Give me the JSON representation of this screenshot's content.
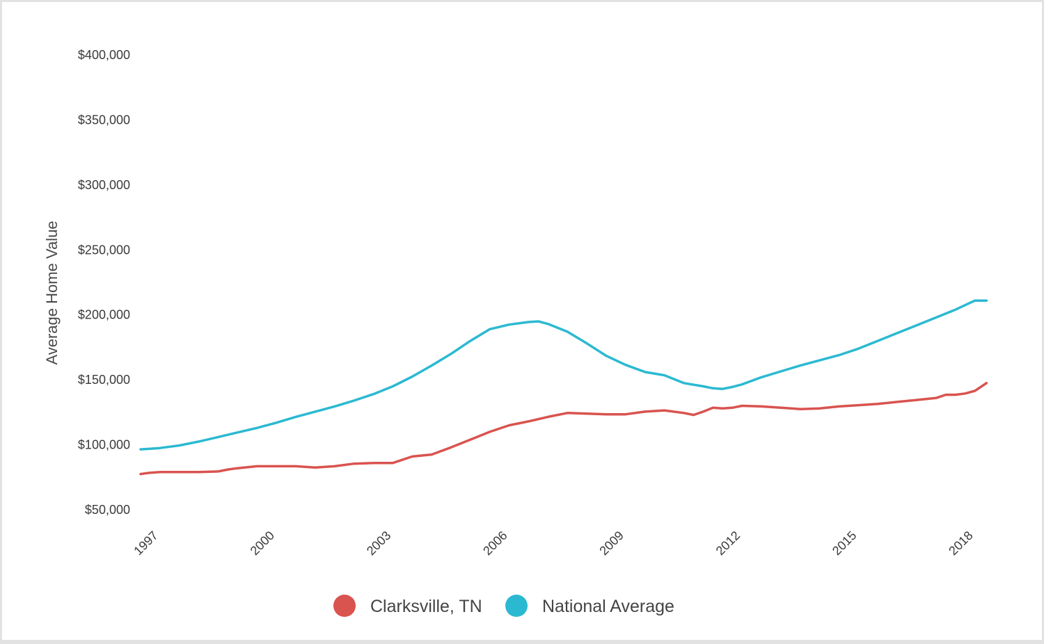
{
  "chart_data": {
    "type": "line",
    "title": "",
    "xlabel": "",
    "ylabel": "Average Home Value",
    "x_ticks": [
      "1997",
      "2000",
      "2003",
      "2006",
      "2009",
      "2012",
      "2015",
      "2018"
    ],
    "y_ticks": [
      "$50,000",
      "$100,000",
      "$150,000",
      "$200,000",
      "$250,000",
      "$300,000",
      "$350,000",
      "$400,000"
    ],
    "xlim": [
      1997,
      2018.9
    ],
    "ylim": [
      50000,
      400000
    ],
    "grid": false,
    "legend_position": "bottom",
    "series": [
      {
        "name": "Clarksville, TN",
        "color": "#d9534f",
        "x": [
          1997.0,
          1997.25,
          1997.5,
          1998.0,
          1998.5,
          1999.0,
          1999.25,
          1999.5,
          2000.0,
          2000.5,
          2001.0,
          2001.5,
          2002.0,
          2002.5,
          2003.0,
          2003.5,
          2004.0,
          2004.5,
          2005.0,
          2005.5,
          2006.0,
          2006.5,
          2007.0,
          2007.5,
          2008.0,
          2008.5,
          2009.0,
          2009.5,
          2010.0,
          2010.25,
          2010.5,
          2011.0,
          2011.25,
          2011.5,
          2011.75,
          2012.0,
          2012.25,
          2012.5,
          2013.0,
          2013.5,
          2014.0,
          2014.5,
          2015.0,
          2015.5,
          2016.0,
          2016.5,
          2017.0,
          2017.5,
          2017.75,
          2018.0,
          2018.25,
          2018.5,
          2018.8
        ],
        "values": [
          77500,
          78500,
          79000,
          79000,
          79000,
          79500,
          81000,
          82000,
          83500,
          83500,
          83500,
          82500,
          83500,
          85500,
          86000,
          86000,
          91000,
          92500,
          98000,
          104000,
          110000,
          115000,
          118000,
          121500,
          124500,
          124000,
          123500,
          123500,
          125500,
          126000,
          126500,
          124500,
          123000,
          125500,
          128500,
          128000,
          128500,
          130000,
          129500,
          128500,
          127500,
          128000,
          129500,
          130500,
          131500,
          133000,
          134500,
          136000,
          138500,
          138500,
          139500,
          141500,
          147500
        ]
      },
      {
        "name": "National Average",
        "color": "#2bb9d1",
        "x": [
          1997.0,
          1997.25,
          1997.5,
          1998.0,
          1998.5,
          1999.0,
          1999.5,
          2000.0,
          2000.5,
          2001.0,
          2001.5,
          2002.0,
          2002.5,
          2003.0,
          2003.5,
          2004.0,
          2004.5,
          2005.0,
          2005.5,
          2006.0,
          2006.5,
          2007.0,
          2007.25,
          2007.5,
          2008.0,
          2008.5,
          2009.0,
          2009.5,
          2010.0,
          2010.5,
          2011.0,
          2011.5,
          2011.75,
          2012.0,
          2012.25,
          2012.5,
          2013.0,
          2013.5,
          2014.0,
          2014.5,
          2015.0,
          2015.5,
          2016.0,
          2016.5,
          2017.0,
          2017.5,
          2018.0,
          2018.5,
          2018.8
        ],
        "values": [
          96500,
          97000,
          97500,
          99500,
          102500,
          106000,
          109500,
          113000,
          117000,
          121500,
          125500,
          129500,
          134000,
          139000,
          145000,
          152500,
          161000,
          170000,
          180000,
          189000,
          192500,
          194500,
          195000,
          193000,
          187000,
          178000,
          168500,
          161500,
          156000,
          153500,
          147500,
          145000,
          143500,
          143000,
          144500,
          146500,
          152000,
          156500,
          161000,
          165000,
          169000,
          174000,
          180000,
          186000,
          192000,
          198000,
          204000,
          211000,
          211000
        ]
      }
    ]
  }
}
